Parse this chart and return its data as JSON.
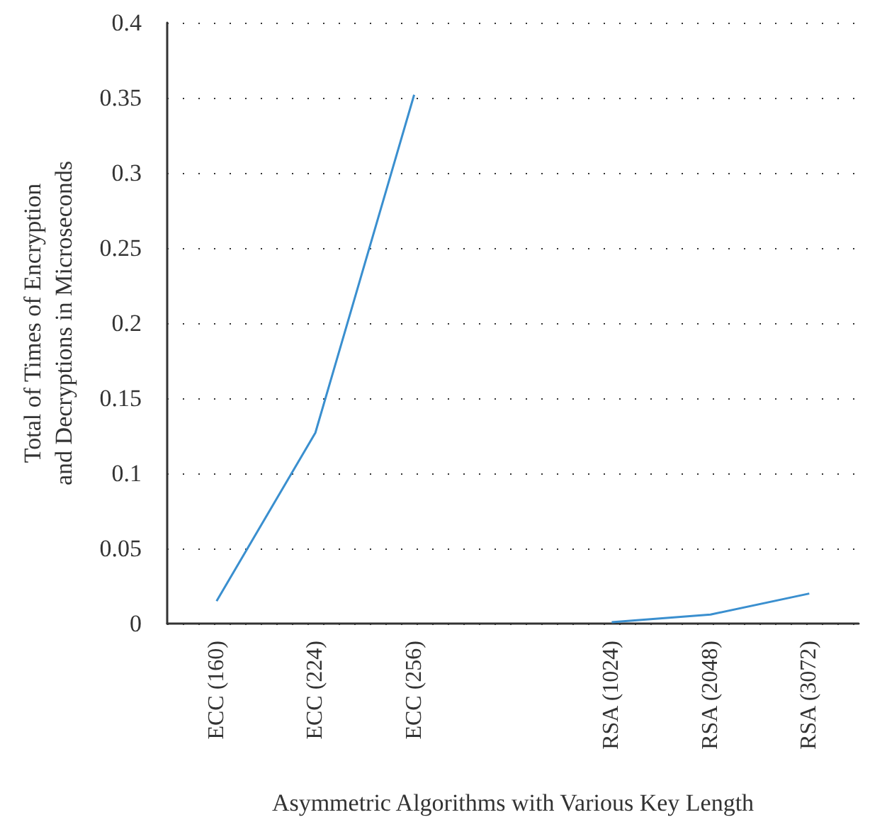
{
  "chart_data": {
    "type": "line",
    "xlabel": "Asymmetric Algorithms with Various Key Length",
    "ylabel": "Total of Times of Encryption and Decryptions in Microseconds",
    "categories": [
      "ECC (160)",
      "ECC (224)",
      "ECC (256)",
      null,
      "RSA (1024)",
      "RSA (2048)",
      "RSA (3072)"
    ],
    "series": [
      {
        "color": "#3a8fcf",
        "values": [
          0.015,
          0.127,
          0.352,
          null,
          null,
          null,
          null
        ]
      },
      {
        "color": "#3a8fcf",
        "values": [
          null,
          null,
          null,
          null,
          0.001,
          0.006,
          0.02
        ]
      }
    ],
    "ylim": [
      0,
      0.4
    ],
    "yticks": [
      0,
      0.05,
      0.1,
      0.15,
      0.2,
      0.25,
      0.3,
      0.35,
      0.4
    ],
    "grid": "y",
    "marker": "none",
    "line_style": "solid"
  }
}
